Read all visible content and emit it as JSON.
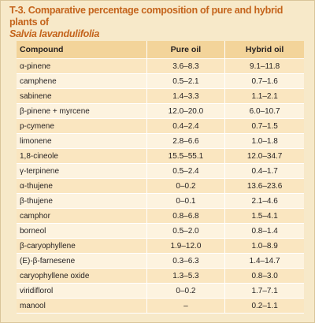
{
  "title": {
    "line1": "T-3. Comparative percentage composition of pure and hybrid plants of",
    "line2": "Salvia lavandulifolia"
  },
  "table": {
    "headers": [
      "Compound",
      "Pure oil",
      "Hybrid oil"
    ],
    "rows": [
      [
        "α-pinene",
        "3.6–8.3",
        "9.1–11.8"
      ],
      [
        "camphene",
        "0.5–2.1",
        "0.7–1.6"
      ],
      [
        "sabinene",
        "1.4–3.3",
        "1.1–2.1"
      ],
      [
        "β-pinene + myrcene",
        "12.0–20.0",
        "6.0–10.7"
      ],
      [
        "p-cymene",
        "0.4–2.4",
        "0.7–1.5"
      ],
      [
        "limonene",
        "2.8–6.6",
        "1.0–1.8"
      ],
      [
        "1,8-cineole",
        "15.5–55.1",
        "12.0–34.7"
      ],
      [
        "γ-terpinene",
        "0.5–2.4",
        "0.4–1.7"
      ],
      [
        "α-thujene",
        "0–0.2",
        "13.6–23.6"
      ],
      [
        "β-thujene",
        "0–0.1",
        "2.1–4.6"
      ],
      [
        "camphor",
        "0.8–6.8",
        "1.5–4.1"
      ],
      [
        "borneol",
        "0.5–2.0",
        "0.8–1.4"
      ],
      [
        "β-caryophyllene",
        "1.9–12.0",
        "1.0–8.9"
      ],
      [
        "(E)-β-farnesene",
        "0.3–6.3",
        "1.4–14.7"
      ],
      [
        "caryophyllene oxide",
        "1.3–5.3",
        "0.8–3.0"
      ],
      [
        "viridiflorol",
        "0–0.2",
        "1.7–7.1"
      ],
      [
        "manool",
        "–",
        "0.2–1.1"
      ]
    ]
  }
}
